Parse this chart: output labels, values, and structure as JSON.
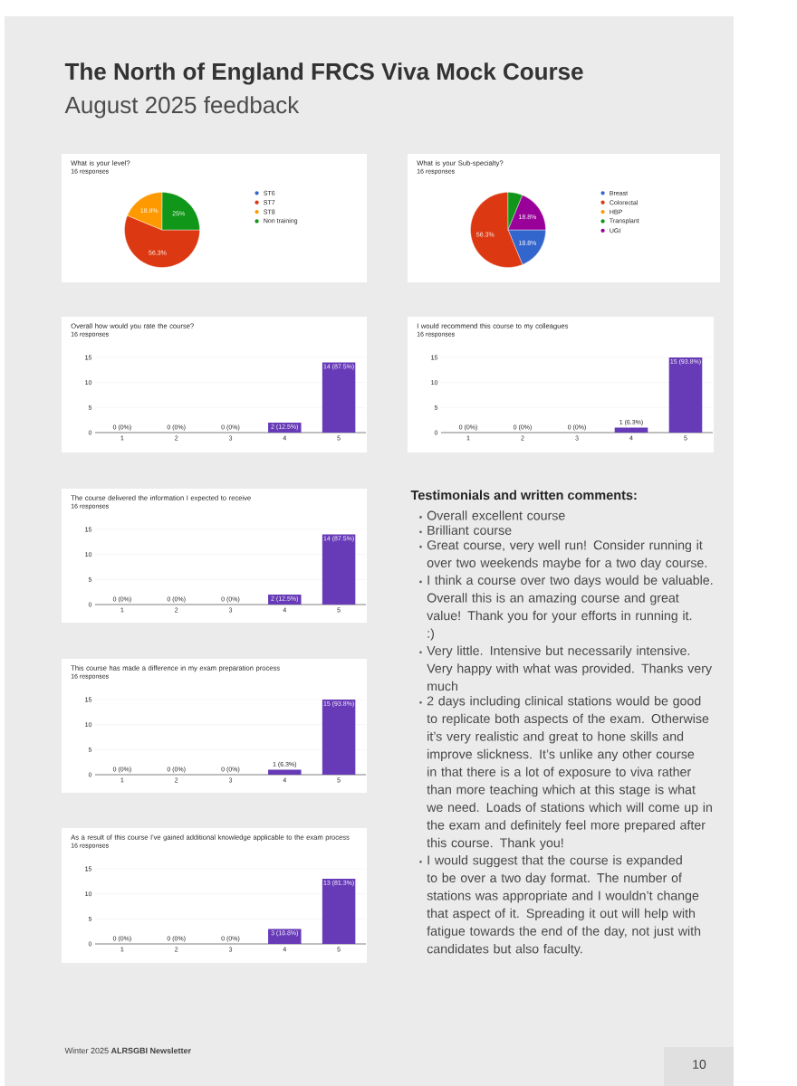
{
  "chart_data": [
    {
      "type": "other",
      "title": "The North of England FRCS Viva Mock Course",
      "subtitle": "August 2025 feedback",
      "annotations": [
        "Winter 2025 **ALRSGBI Newsletter**",
        "10"
      ]
    },
    {
      "type": "pie",
      "title": "What is your level?",
      "subtitle": "16 responses",
      "categories": [
        "ST6",
        "ST7",
        "ST8",
        "Non training"
      ],
      "values": [
        0,
        56.3,
        18.8,
        25
      ],
      "value_labels": [
        null,
        "56.3%",
        "18.8%",
        "25%"
      ],
      "colors": [
        "#3366cc",
        "#dc3912",
        "#ff9900",
        "#109618"
      ],
      "legend": "right"
    },
    {
      "type": "pie",
      "title": "What is your Sub-specialty?",
      "subtitle": "16 responses",
      "categories": [
        "Breast",
        "Colorectal",
        "HBP",
        "Transplant",
        "UGI"
      ],
      "values": [
        18.8,
        56.3,
        0,
        6.3,
        18.8
      ],
      "value_labels": [
        "18.8%",
        "56.3%",
        null,
        null,
        "18.8%"
      ],
      "colors": [
        "#3366cc",
        "#dc3912",
        "#ff9900",
        "#109618",
        "#990099"
      ],
      "legend": "right"
    },
    {
      "type": "bar",
      "title": "Overall how would you rate the course?",
      "subtitle": "16 responses",
      "categories": [
        "1",
        "2",
        "3",
        "4",
        "5"
      ],
      "values": [
        0,
        0,
        0,
        2,
        14
      ],
      "value_labels": [
        "0 (0%)",
        "0 (0%)",
        "0 (0%)",
        "2 (12.5%)",
        "14 (87.5%)"
      ],
      "color": "#673ab7",
      "ylim": [
        0,
        15
      ],
      "yticks": [
        0,
        5,
        10,
        15
      ],
      "grid": "y"
    },
    {
      "type": "bar",
      "title": "I would recommend this course to my colleagues",
      "subtitle": "16 responses",
      "categories": [
        "1",
        "2",
        "3",
        "4",
        "5"
      ],
      "values": [
        0,
        0,
        0,
        1,
        15
      ],
      "value_labels": [
        "0 (0%)",
        "0 (0%)",
        "0 (0%)",
        "1 (6.3%)",
        "15 (93.8%)"
      ],
      "color": "#673ab7",
      "ylim": [
        0,
        15
      ],
      "yticks": [
        0,
        5,
        10,
        15
      ],
      "grid": "y"
    },
    {
      "type": "bar",
      "title": "The course delivered the information I expected to receive",
      "subtitle": "16 responses",
      "categories": [
        "1",
        "2",
        "3",
        "4",
        "5"
      ],
      "values": [
        0,
        0,
        0,
        2,
        14
      ],
      "value_labels": [
        "0 (0%)",
        "0 (0%)",
        "0 (0%)",
        "2 (12.5%)",
        "14 (87.5%)"
      ],
      "color": "#673ab7",
      "ylim": [
        0,
        15
      ],
      "yticks": [
        0,
        5,
        10,
        15
      ],
      "grid": "y"
    },
    {
      "type": "other",
      "title": "Testimonials and written comments:",
      "annotations": [
        "Overall excellent course",
        "Brilliant course",
        "Great course, very well run! Consider running it over two weekends maybe for a two day course.",
        "I think a course over two days would be valuable. Overall this is an amazing course and great value! Thank you for your efforts in running it. :)",
        "Very little. Intensive but necessarily intensive. Very happy with what was provided. Thanks very much",
        "2 days including clinical stations would be good to replicate both aspects of the exam. Otherwise it’s very realistic and great to hone skills and improve slickness. It’s unlike any other course in that there is a lot of exposure to viva rather than more teaching which at this stage is what we need. Loads of stations which will come up in the exam and definitely feel more prepared after this course. Thank you!",
        "I would suggest that the course is expanded to be over a two day format. The number of stations was appropriate and I wouldn’t change that aspect of it. Spreading it out will help with fatigue towards the end of the day, not just with candidates but also faculty."
      ]
    },
    {
      "type": "bar",
      "title": "This course has made a difference in my exam preparation process",
      "subtitle": "16 responses",
      "categories": [
        "1",
        "2",
        "3",
        "4",
        "5"
      ],
      "values": [
        0,
        0,
        0,
        1,
        15
      ],
      "value_labels": [
        "0 (0%)",
        "0 (0%)",
        "0 (0%)",
        "1 (6.3%)",
        "15 (93.8%)"
      ],
      "color": "#673ab7",
      "ylim": [
        0,
        15
      ],
      "yticks": [
        0,
        5,
        10,
        15
      ],
      "grid": "y"
    },
    {
      "type": "bar",
      "title": "As a result of this course I've gained additional knowledge applicable to the exam process",
      "subtitle": "16 responses",
      "categories": [
        "1",
        "2",
        "3",
        "4",
        "5"
      ],
      "values": [
        0,
        0,
        0,
        3,
        13
      ],
      "value_labels": [
        "0 (0%)",
        "0 (0%)",
        "0 (0%)",
        "3 (18.8%)",
        "13 (81.3%)"
      ],
      "color": "#673ab7",
      "ylim": [
        0,
        15
      ],
      "yticks": [
        0,
        5,
        10,
        15
      ],
      "grid": "y"
    }
  ]
}
